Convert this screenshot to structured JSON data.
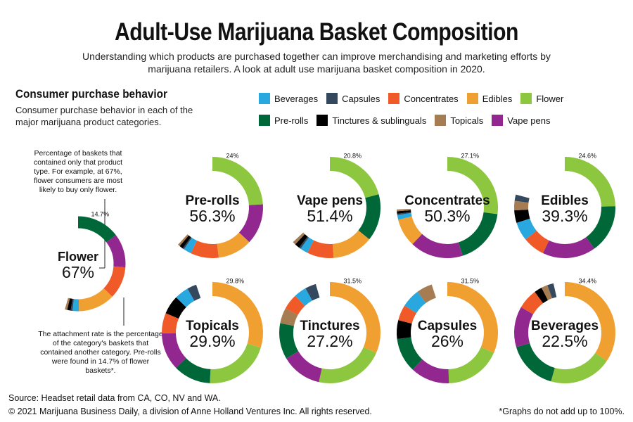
{
  "title": "Adult-Use Marijuana Basket Composition",
  "subtitle": "Understanding which products are purchased together can improve merchandising and marketing efforts by marijuana retailers. A look at adult use marijuana basket composition in 2020.",
  "section": {
    "heading": "Consumer purchase behavior",
    "text": "Consumer purchase behavior in each of the major marijuana product categories."
  },
  "legend": [
    {
      "label": "Beverages",
      "color": "#29a8e0"
    },
    {
      "label": "Capsules",
      "color": "#34495e"
    },
    {
      "label": "Concentrates",
      "color": "#f05a28"
    },
    {
      "label": "Edibles",
      "color": "#f0a030"
    },
    {
      "label": "Flower",
      "color": "#8dc63f"
    },
    {
      "label": "Pre-rolls",
      "color": "#006838"
    },
    {
      "label": "Tinctures & sublinguals",
      "color": "#000000"
    },
    {
      "label": "Topicals",
      "color": "#a67c52"
    },
    {
      "label": "Vape pens",
      "color": "#92278f"
    }
  ],
  "annotations": {
    "top": "Percentage of baskets that contained only that product type. For example, at 67%, flower consumers are most likely to buy only flower.",
    "bottom": "The attachment rate is the percentage of the category's baskets that contained another category. Pre-rolls were found in 14.7% of flower baskets*."
  },
  "chart_data": [
    {
      "type": "pie",
      "name": "Flower",
      "alone": "67%",
      "label": "14.7%",
      "slices": [
        {
          "category": "Pre-rolls",
          "value": 14.7
        },
        {
          "category": "Vape pens",
          "value": 11.5
        },
        {
          "category": "Concentrates",
          "value": 11.0
        },
        {
          "category": "Edibles",
          "value": 12.5
        },
        {
          "category": "Beverages",
          "value": 2.2
        },
        {
          "category": "Capsules",
          "value": 0.6
        },
        {
          "category": "Tinctures & sublinguals",
          "value": 1.2
        },
        {
          "category": "Topicals",
          "value": 0.8
        }
      ]
    },
    {
      "type": "pie",
      "name": "Pre-rolls",
      "alone": "56.3%",
      "label": "24%",
      "slices": [
        {
          "category": "Flower",
          "value": 24.0
        },
        {
          "category": "Vape pens",
          "value": 13.0
        },
        {
          "category": "Edibles",
          "value": 11.0
        },
        {
          "category": "Concentrates",
          "value": 9.0
        },
        {
          "category": "Beverages",
          "value": 2.5
        },
        {
          "category": "Capsules",
          "value": 0.5
        },
        {
          "category": "Tinctures & sublinguals",
          "value": 1.2
        },
        {
          "category": "Topicals",
          "value": 0.7
        }
      ]
    },
    {
      "type": "pie",
      "name": "Vape pens",
      "alone": "51.4%",
      "label": "20.8%",
      "slices": [
        {
          "category": "Flower",
          "value": 20.8
        },
        {
          "category": "Pre-rolls",
          "value": 15.0
        },
        {
          "category": "Edibles",
          "value": 13.0
        },
        {
          "category": "Concentrates",
          "value": 8.5
        },
        {
          "category": "Beverages",
          "value": 2.5
        },
        {
          "category": "Capsules",
          "value": 0.6
        },
        {
          "category": "Tinctures & sublinguals",
          "value": 1.6
        },
        {
          "category": "Topicals",
          "value": 1.0
        }
      ]
    },
    {
      "type": "pie",
      "name": "Concentrates",
      "alone": "50.3%",
      "label": "27.1%",
      "slices": [
        {
          "category": "Flower",
          "value": 27.1
        },
        {
          "category": "Pre-rolls",
          "value": 18.0
        },
        {
          "category": "Vape pens",
          "value": 17.0
        },
        {
          "category": "Edibles",
          "value": 9.0
        },
        {
          "category": "Beverages",
          "value": 1.5
        },
        {
          "category": "Capsules",
          "value": 0.4
        },
        {
          "category": "Tinctures & sublinguals",
          "value": 0.8
        },
        {
          "category": "Topicals",
          "value": 0.6
        }
      ]
    },
    {
      "type": "pie",
      "name": "Edibles",
      "alone": "39.3%",
      "label": "24.6%",
      "slices": [
        {
          "category": "Flower",
          "value": 24.6
        },
        {
          "category": "Pre-rolls",
          "value": 15.5
        },
        {
          "category": "Vape pens",
          "value": 17.0
        },
        {
          "category": "Concentrates",
          "value": 7.0
        },
        {
          "category": "Beverages",
          "value": 6.0
        },
        {
          "category": "Tinctures & sublinguals",
          "value": 4.0
        },
        {
          "category": "Topicals",
          "value": 3.0
        },
        {
          "category": "Capsules",
          "value": 2.0
        }
      ]
    },
    {
      "type": "pie",
      "name": "Topicals",
      "alone": "29.9%",
      "label": "29.8%",
      "slices": [
        {
          "category": "Edibles",
          "value": 29.8
        },
        {
          "category": "Flower",
          "value": 21.0
        },
        {
          "category": "Pre-rolls",
          "value": 12.0
        },
        {
          "category": "Vape pens",
          "value": 12.0
        },
        {
          "category": "Concentrates",
          "value": 6.5
        },
        {
          "category": "Tinctures & sublinguals",
          "value": 6.0
        },
        {
          "category": "Beverages",
          "value": 4.5
        },
        {
          "category": "Capsules",
          "value": 3.0
        }
      ]
    },
    {
      "type": "pie",
      "name": "Tinctures",
      "alone": "27.2%",
      "label": "31.5%",
      "slices": [
        {
          "category": "Edibles",
          "value": 31.5
        },
        {
          "category": "Flower",
          "value": 22.0
        },
        {
          "category": "Vape pens",
          "value": 13.0
        },
        {
          "category": "Pre-rolls",
          "value": 11.5
        },
        {
          "category": "Topicals",
          "value": 5.0
        },
        {
          "category": "Concentrates",
          "value": 5.0
        },
        {
          "category": "Beverages",
          "value": 4.0
        },
        {
          "category": "Capsules",
          "value": 3.5
        }
      ]
    },
    {
      "type": "pie",
      "name": "Capsules",
      "alone": "26%",
      "label": "31.5%",
      "slices": [
        {
          "category": "Edibles",
          "value": 31.5
        },
        {
          "category": "Flower",
          "value": 18.0
        },
        {
          "category": "Vape pens",
          "value": 12.5
        },
        {
          "category": "Pre-rolls",
          "value": 11.0
        },
        {
          "category": "Tinctures & sublinguals",
          "value": 6.0
        },
        {
          "category": "Concentrates",
          "value": 5.0
        },
        {
          "category": "Beverages",
          "value": 6.0
        },
        {
          "category": "Topicals",
          "value": 5.0
        }
      ]
    },
    {
      "type": "pie",
      "name": "Beverages",
      "alone": "22.5%",
      "label": "34.4%",
      "slices": [
        {
          "category": "Edibles",
          "value": 34.4
        },
        {
          "category": "Flower",
          "value": 20.0
        },
        {
          "category": "Pre-rolls",
          "value": 16.0
        },
        {
          "category": "Vape pens",
          "value": 13.0
        },
        {
          "category": "Concentrates",
          "value": 6.5
        },
        {
          "category": "Tinctures & sublinguals",
          "value": 2.5
        },
        {
          "category": "Topicals",
          "value": 2.0
        },
        {
          "category": "Capsules",
          "value": 2.0
        }
      ]
    }
  ],
  "footer": {
    "source": "Source: Headset retail data from CA, CO, NV and WA.",
    "copyright": "© 2021 Marijuana Business Daily, a division of Anne Holland Ventures Inc. All rights reserved.",
    "note": "*Graphs do not add up to 100%."
  }
}
